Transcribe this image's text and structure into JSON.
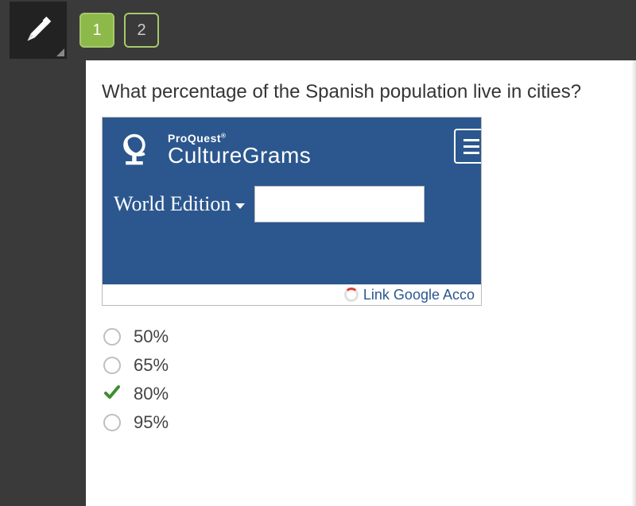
{
  "colors": {
    "topbar_bg": "#3a3a3a",
    "qnum_border": "#a6c96a",
    "qnum_active_bg": "#8db84a",
    "embed_bg": "#2b578e",
    "check_color": "#3e8e2f",
    "radio_border": "#bfbfbf"
  },
  "topbar": {
    "questions": [
      {
        "label": "1",
        "active": true
      },
      {
        "label": "2",
        "active": false
      }
    ]
  },
  "question": {
    "text": "What percentage of the Spanish population live in cities?"
  },
  "embed": {
    "brand_top": "ProQuest",
    "brand_reg": "®",
    "brand_main": "CultureGrams",
    "edition_label": "World Edition",
    "search_value": "",
    "footer_text": "Link Google Acco"
  },
  "options": [
    {
      "label": "50%",
      "selected": false
    },
    {
      "label": "65%",
      "selected": false
    },
    {
      "label": "80%",
      "selected": true
    },
    {
      "label": "95%",
      "selected": false
    }
  ]
}
